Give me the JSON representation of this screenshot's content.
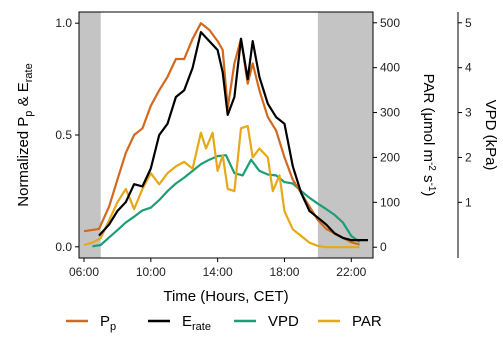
{
  "chart_data": {
    "type": "line",
    "xlabel": "Time (Hours, CET)",
    "ylabel_left": {
      "main": "Normalized P",
      "sub1": "p",
      "mid": " & E",
      "sub2": "rate"
    },
    "ylabel_right1": {
      "main": "PAR (μmol m",
      "sup1": "-2",
      "mid": " s",
      "sup2": "-1",
      "end": ")"
    },
    "ylabel_right2": "VPD (kPa)",
    "x_range": [
      5.7,
      23.3
    ],
    "x_ticks": [
      {
        "v": 6,
        "label": "06:00"
      },
      {
        "v": 10,
        "label": "10:00"
      },
      {
        "v": 14,
        "label": "14:00"
      },
      {
        "v": 18,
        "label": "18:00"
      },
      {
        "v": 22,
        "label": "22:00"
      }
    ],
    "ylim_left": [
      -0.05,
      1.05
    ],
    "y_ticks_left": [
      {
        "v": 0,
        "label": "0.0"
      },
      {
        "v": 0.5,
        "label": "0.5"
      },
      {
        "v": 1,
        "label": "1.0"
      }
    ],
    "ylim_par": [
      -24,
      524
    ],
    "y_ticks_par": [
      {
        "v": 0,
        "label": "0"
      },
      {
        "v": 100,
        "label": "100"
      },
      {
        "v": 200,
        "label": "200"
      },
      {
        "v": 300,
        "label": "300"
      },
      {
        "v": 400,
        "label": "400"
      },
      {
        "v": 500,
        "label": "500"
      }
    ],
    "ylim_vpd": [
      -0.24,
      5.24
    ],
    "y_ticks_vpd": [
      {
        "v": 1,
        "label": "1"
      },
      {
        "v": 2,
        "label": "2"
      },
      {
        "v": 3,
        "label": "3"
      },
      {
        "v": 4,
        "label": "4"
      },
      {
        "v": 5,
        "label": "5"
      }
    ],
    "shaded_regions": [
      [
        5.7,
        7.0
      ],
      [
        20.0,
        23.3
      ]
    ],
    "grid": false,
    "legend_position": "bottom",
    "series": [
      {
        "name": "P",
        "name_sub": "p",
        "color": "#D2691E",
        "axis": "left",
        "x": [
          6.0,
          6.9,
          7.5,
          8.0,
          8.5,
          9.0,
          9.5,
          10.0,
          10.5,
          11.0,
          11.5,
          12.0,
          12.5,
          13.0,
          13.5,
          14.0,
          14.3,
          14.6,
          15.0,
          15.4,
          15.8,
          16.1,
          16.5,
          17.0,
          17.5,
          18.0,
          18.5,
          19.0,
          19.5,
          20.0,
          20.5,
          21.0,
          21.5,
          22.0,
          22.5
        ],
        "y": [
          0.07,
          0.08,
          0.18,
          0.3,
          0.42,
          0.5,
          0.53,
          0.63,
          0.7,
          0.76,
          0.84,
          0.84,
          0.93,
          1.0,
          0.97,
          0.92,
          0.88,
          0.62,
          0.82,
          0.93,
          0.73,
          0.82,
          0.7,
          0.58,
          0.52,
          0.4,
          0.3,
          0.24,
          0.18,
          0.12,
          0.08,
          0.06,
          0.04,
          0.02,
          0.01
        ]
      },
      {
        "name": "E",
        "name_sub": "rate",
        "color": "#000000",
        "axis": "left",
        "x": [
          6.9,
          7.5,
          8.0,
          8.5,
          9.0,
          9.5,
          10.0,
          10.5,
          11.0,
          11.5,
          12.0,
          12.5,
          13.0,
          13.5,
          14.0,
          14.3,
          14.6,
          15.0,
          15.4,
          15.8,
          16.1,
          16.5,
          17.0,
          17.5,
          18.0,
          18.5,
          19.0,
          19.5,
          20.0,
          20.5,
          21.0,
          21.5,
          22.0,
          22.5,
          23.0
        ],
        "y": [
          0.05,
          0.1,
          0.16,
          0.2,
          0.28,
          0.27,
          0.35,
          0.5,
          0.55,
          0.67,
          0.7,
          0.8,
          0.96,
          0.92,
          0.88,
          0.78,
          0.59,
          0.67,
          0.93,
          0.75,
          0.92,
          0.76,
          0.64,
          0.58,
          0.55,
          0.36,
          0.24,
          0.16,
          0.13,
          0.1,
          0.06,
          0.04,
          0.03,
          0.03,
          0.03
        ]
      },
      {
        "name": "VPD",
        "color": "#1B9E77",
        "axis": "vpd",
        "x": [
          6.5,
          7.0,
          7.5,
          8.0,
          8.5,
          9.0,
          9.5,
          10.0,
          10.5,
          11.0,
          11.5,
          12.0,
          12.5,
          13.0,
          13.5,
          14.0,
          14.5,
          15.0,
          15.5,
          16.0,
          16.5,
          17.0,
          17.5,
          18.0,
          18.5,
          19.0,
          19.5,
          20.0,
          20.5,
          21.0,
          21.5,
          22.0,
          22.5
        ],
        "y": [
          0.02,
          0.05,
          0.22,
          0.38,
          0.55,
          0.68,
          0.82,
          0.88,
          1.05,
          1.25,
          1.42,
          1.55,
          1.7,
          1.85,
          1.95,
          2.03,
          2.05,
          1.65,
          1.6,
          1.95,
          1.7,
          1.62,
          1.6,
          1.45,
          1.42,
          1.25,
          1.1,
          0.97,
          0.85,
          0.72,
          0.55,
          0.25,
          0.12
        ]
      },
      {
        "name": "PAR",
        "color": "#E6A817",
        "axis": "par",
        "x": [
          6.0,
          6.5,
          7.0,
          7.5,
          8.0,
          8.5,
          9.0,
          9.5,
          10.0,
          10.5,
          11.0,
          11.5,
          12.0,
          12.5,
          13.0,
          13.3,
          13.7,
          14.0,
          14.3,
          14.6,
          15.0,
          15.4,
          15.8,
          16.1,
          16.5,
          17.0,
          17.3,
          17.7,
          18.0,
          18.5,
          19.0,
          19.5,
          20.0,
          20.5,
          21.0,
          21.5,
          22.0,
          22.5
        ],
        "y": [
          5,
          10,
          20,
          60,
          100,
          130,
          85,
          130,
          165,
          140,
          165,
          180,
          190,
          175,
          255,
          220,
          255,
          170,
          205,
          130,
          125,
          265,
          270,
          200,
          220,
          200,
          125,
          160,
          80,
          40,
          25,
          10,
          3,
          0,
          0,
          0,
          0,
          0
        ]
      }
    ]
  }
}
